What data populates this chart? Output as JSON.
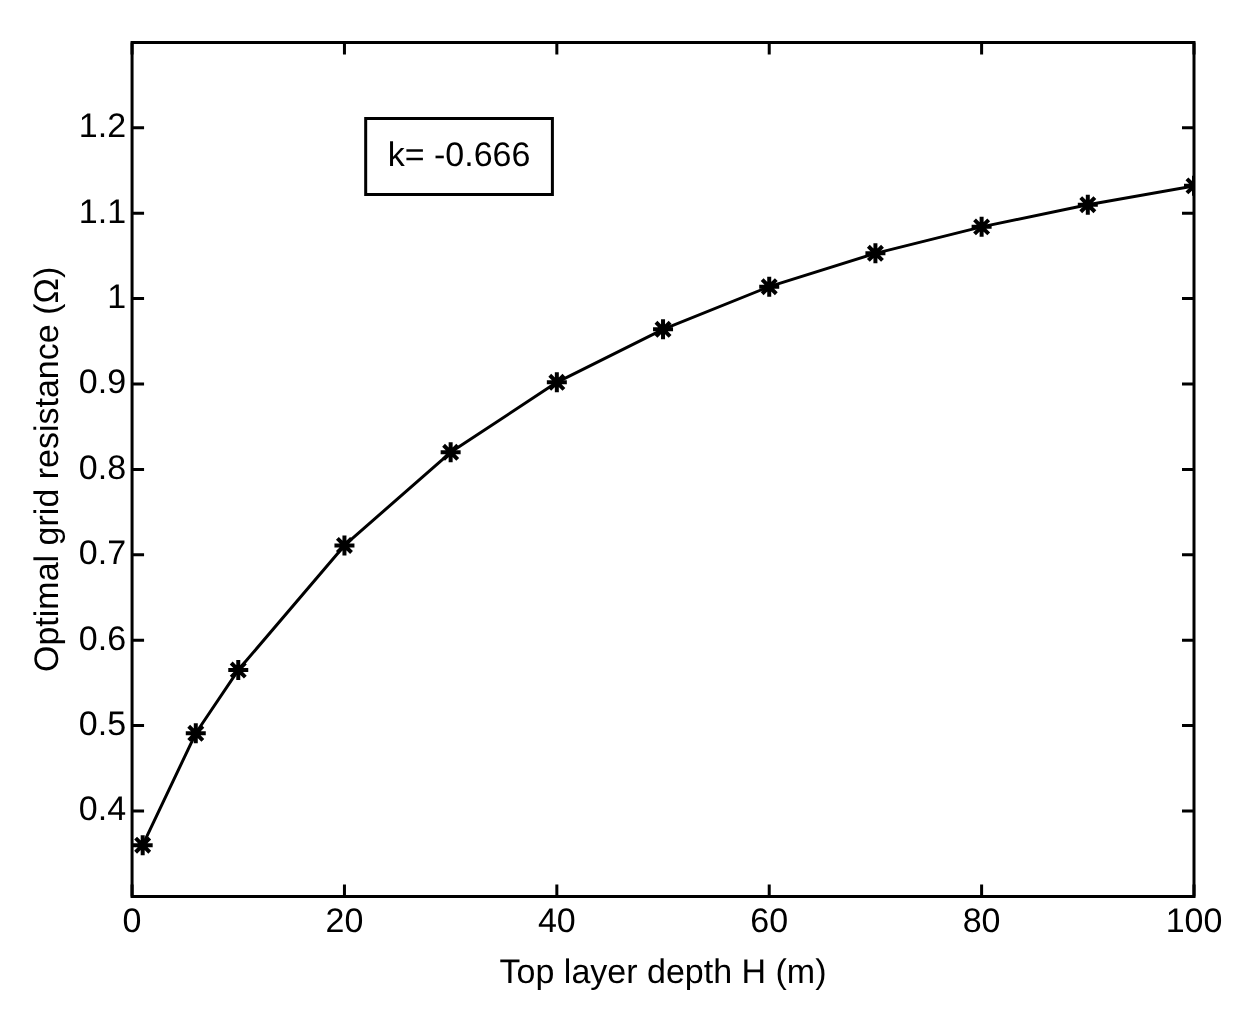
{
  "chart_data": {
    "type": "line",
    "xlabel": "Top layer depth H (m)",
    "ylabel": "Optimal grid resistance (Ω)",
    "annotations": [
      "k= -0.666"
    ],
    "x": [
      1,
      6,
      10,
      20,
      30,
      40,
      50,
      60,
      70,
      80,
      90,
      100
    ],
    "series": [
      {
        "color": "#000000",
        "values": [
          0.36,
          0.491,
          0.565,
          0.711,
          0.82,
          0.902,
          0.964,
          1.014,
          1.053,
          1.084,
          1.11,
          1.132
        ]
      }
    ],
    "xlim": [
      0,
      100
    ],
    "xticks": [
      0,
      20,
      40,
      60,
      80,
      100
    ],
    "ylim": [
      0.3,
      1.3
    ],
    "yticks": [
      0.4,
      0.5,
      0.6,
      0.7,
      0.8,
      0.9,
      1,
      1.1,
      1.2
    ],
    "marker": "cross",
    "line_style": "solid",
    "legend": false
  }
}
